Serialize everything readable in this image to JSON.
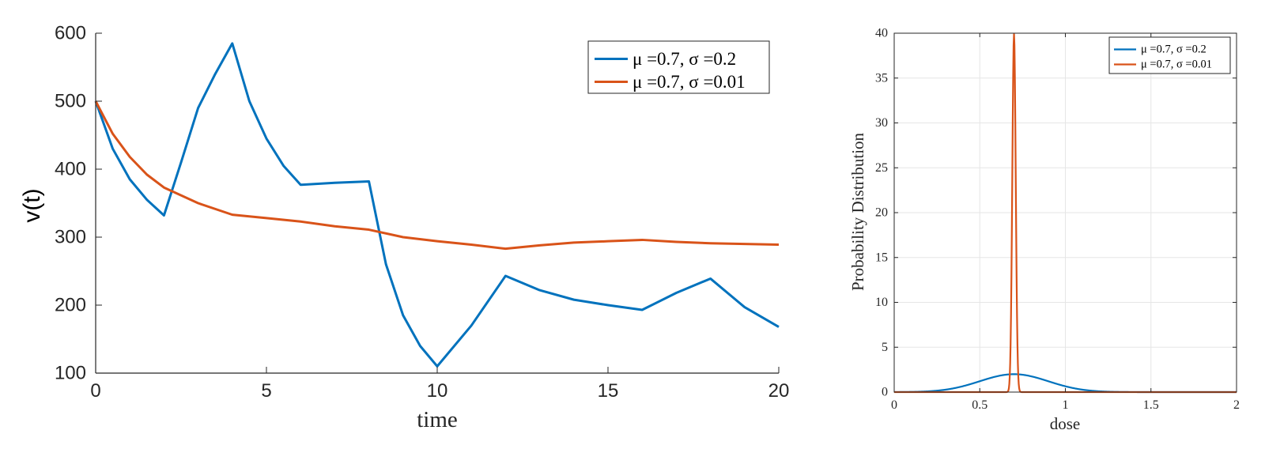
{
  "colors": {
    "series1": "#0072BD",
    "series2": "#D95319",
    "axis": "#262626",
    "grid": "#e6e6e6"
  },
  "chart_data": [
    {
      "type": "line",
      "title": "",
      "xlabel": "time",
      "ylabel": "v(t)",
      "xlim": [
        0,
        20
      ],
      "ylim": [
        100,
        600
      ],
      "xticks": [
        0,
        5,
        10,
        15,
        20
      ],
      "yticks": [
        100,
        200,
        300,
        400,
        500,
        600
      ],
      "xtick_labels": [
        "0",
        "5",
        "10",
        "15",
        "20"
      ],
      "ytick_labels": [
        "100",
        "200",
        "300",
        "400",
        "500",
        "600"
      ],
      "grid": false,
      "legend_position": "top-right",
      "series": [
        {
          "name": "μ =0.7, σ =0.2",
          "x": [
            0,
            0.5,
            1,
            1.5,
            2,
            2.5,
            3,
            3.5,
            4,
            4.5,
            5,
            5.5,
            6,
            7,
            8,
            8.5,
            9,
            9.5,
            10,
            11,
            12,
            13,
            14,
            15,
            16,
            17,
            18,
            19,
            20
          ],
          "y": [
            500,
            430,
            385,
            355,
            332,
            410,
            490,
            540,
            585,
            500,
            445,
            405,
            377,
            380,
            382,
            260,
            185,
            140,
            110,
            170,
            243,
            222,
            208,
            200,
            193,
            218,
            239,
            197,
            168
          ]
        },
        {
          "name": "μ =0.7, σ =0.01",
          "x": [
            0,
            0.5,
            1,
            1.5,
            2,
            3,
            4,
            5,
            6,
            7,
            8,
            9,
            10,
            11,
            12,
            13,
            14,
            15,
            16,
            17,
            18,
            19,
            20
          ],
          "y": [
            500,
            452,
            418,
            392,
            373,
            350,
            333,
            328,
            323,
            316,
            311,
            300,
            294,
            289,
            283,
            288,
            292,
            294,
            296,
            293,
            291,
            290,
            289
          ]
        }
      ]
    },
    {
      "type": "line",
      "title": "",
      "xlabel": "dose",
      "ylabel": "Probability Distribution",
      "xlim": [
        0,
        2
      ],
      "ylim": [
        0,
        40
      ],
      "xticks": [
        0,
        0.5,
        1,
        1.5,
        2
      ],
      "yticks": [
        0,
        5,
        10,
        15,
        20,
        25,
        30,
        35,
        40
      ],
      "xtick_labels": [
        "0",
        "0.5",
        "1",
        "1.5",
        "2"
      ],
      "ytick_labels": [
        "0",
        "5",
        "10",
        "15",
        "20",
        "25",
        "30",
        "35",
        "40"
      ],
      "grid": true,
      "legend_position": "top-right",
      "series": [
        {
          "name": "μ =0.7, σ =0.2",
          "distribution": "normal",
          "mu": 0.7,
          "sigma": 0.2,
          "x": [
            0,
            0.1,
            0.2,
            0.3,
            0.4,
            0.5,
            0.6,
            0.7,
            0.8,
            0.9,
            1.0,
            1.1,
            1.2,
            1.3,
            1.4,
            1.5,
            2.0
          ],
          "y": [
            0.004,
            0.022,
            0.088,
            0.27,
            0.65,
            1.21,
            1.76,
            1.99,
            1.76,
            1.21,
            0.65,
            0.27,
            0.088,
            0.022,
            0.004,
            0.0007,
            0
          ]
        },
        {
          "name": "μ =0.7, σ =0.01",
          "distribution": "normal",
          "mu": 0.7,
          "sigma": 0.01,
          "x": [
            0,
            0.67,
            0.68,
            0.69,
            0.695,
            0.7,
            0.705,
            0.71,
            0.72,
            0.73,
            2.0
          ],
          "y": [
            0,
            0.18,
            5.4,
            24.2,
            35.2,
            39.9,
            35.2,
            24.2,
            5.4,
            0.18,
            0
          ]
        }
      ]
    }
  ]
}
